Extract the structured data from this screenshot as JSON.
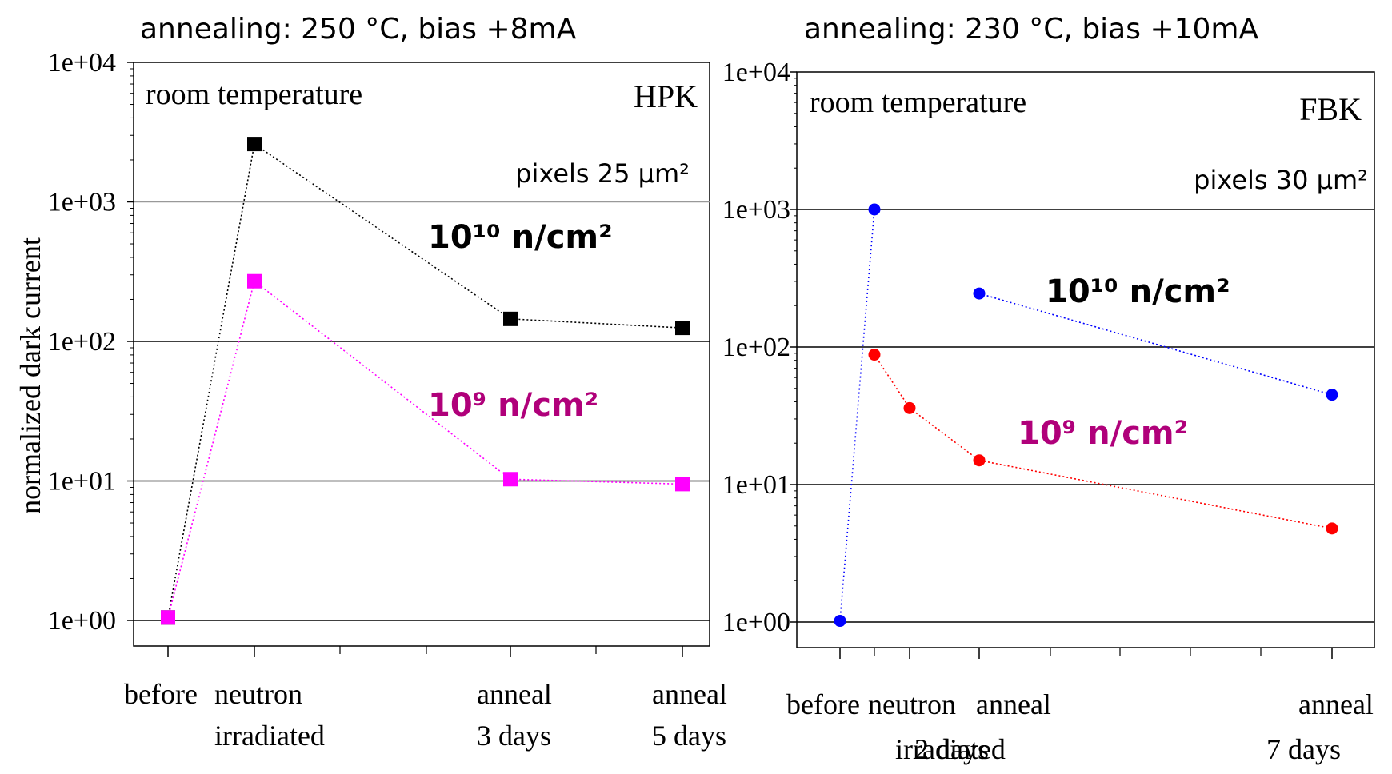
{
  "chart_data": [
    {
      "type": "line",
      "header": "annealing: 250 °C, bias   +8mA",
      "title": "room temperature",
      "manufacturer": "HPK",
      "pixel_note": "pixels 25 μm²",
      "ylabel": "normalized dark current",
      "yscale": "log",
      "ylim": [
        1,
        10000
      ],
      "y_ticks": [
        {
          "value": 1,
          "label": "1e+00"
        },
        {
          "value": 10,
          "label": "1e+01"
        },
        {
          "value": 100,
          "label": "1e+02"
        },
        {
          "value": 1000,
          "label": "1e+03"
        },
        {
          "value": 10000,
          "label": "1e+04"
        }
      ],
      "x_categories": [
        {
          "x": 0,
          "lines": [
            "before"
          ]
        },
        {
          "x": 1,
          "lines": [
            "neutron",
            "irradiated"
          ]
        },
        {
          "x": 4,
          "lines": [
            "anneal",
            "3 days"
          ]
        },
        {
          "x": 6,
          "lines": [
            "anneal",
            "5 days"
          ]
        }
      ],
      "series": [
        {
          "name": "10¹⁰ n/cm²",
          "color": "#000000",
          "marker": "square",
          "x": [
            0,
            1,
            4,
            6
          ],
          "y": [
            1.05,
            2600,
            145,
            125
          ]
        },
        {
          "name": "10⁹ n/cm²",
          "color": "#ff00ff",
          "marker": "square",
          "x": [
            0,
            1,
            4,
            6
          ],
          "y": [
            1.05,
            270,
            10.3,
            9.5
          ]
        }
      ],
      "annotations": [
        {
          "text": "10¹⁰ n/cm²",
          "color": "#000000"
        },
        {
          "text": "10⁹ n/cm²",
          "color": "#b0007a"
        }
      ]
    },
    {
      "type": "line",
      "header": "annealing: 230 °C, bias   +10mA",
      "title": "room temperature",
      "manufacturer": "FBK",
      "pixel_note": "pixels 30 μm²",
      "ylabel": "",
      "yscale": "log",
      "ylim": [
        1,
        10000
      ],
      "y_ticks": [
        {
          "value": 1,
          "label": "1e+00"
        },
        {
          "value": 10,
          "label": "1e+01"
        },
        {
          "value": 100,
          "label": "1e+02"
        },
        {
          "value": 1000,
          "label": "1e+03"
        },
        {
          "value": 10000,
          "label": "1e+04"
        }
      ],
      "x_categories": [
        {
          "x": 0,
          "lines": [
            "before"
          ]
        },
        {
          "x": 1,
          "lines": [
            "neutron",
            "irradiated"
          ]
        },
        {
          "x": 2,
          "lines": [
            "anneal",
            "2 days"
          ]
        },
        {
          "x": 7,
          "lines": [
            "anneal",
            "7 days"
          ]
        }
      ],
      "series": [
        {
          "name": "10¹⁰ n/cm²",
          "color": "#0000ff",
          "marker": "circle",
          "x": [
            0,
            0.5,
            null,
            2,
            7
          ],
          "y": [
            1.02,
            1000,
            null,
            245,
            45
          ]
        },
        {
          "name": "10⁹ n/cm²",
          "color": "#ff0000",
          "marker": "circle",
          "x": [
            0.5,
            1,
            2,
            7
          ],
          "y": [
            88,
            36,
            15,
            4.8
          ]
        }
      ],
      "annotations": [
        {
          "text": "10¹⁰ n/cm²",
          "color": "#000000"
        },
        {
          "text": "10⁹ n/cm²",
          "color": "#b0007a"
        }
      ]
    }
  ]
}
